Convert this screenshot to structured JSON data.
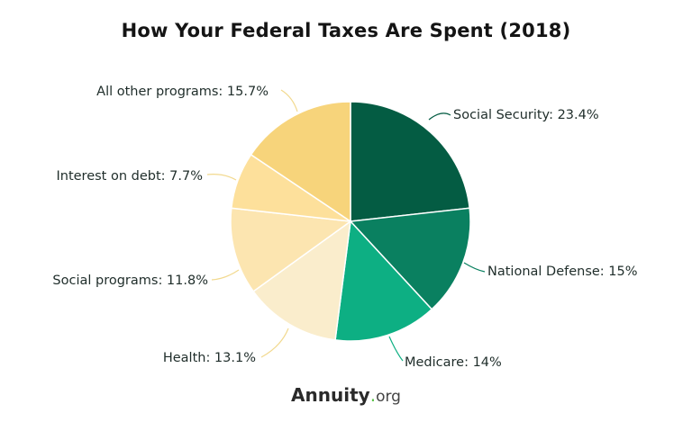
{
  "chart_data": {
    "type": "pie",
    "title": "How Your Federal Taxes Are Spent (2018)",
    "start": "top",
    "direction": "clockwise",
    "slices": [
      {
        "label": "Social Security: 23.4%",
        "value": 23.4,
        "color": "#045c43"
      },
      {
        "label": "National Defense: 15%",
        "value": 15,
        "color": "#0a8060"
      },
      {
        "label": "Medicare: 14%",
        "value": 14,
        "color": "#0daf83"
      },
      {
        "label": "Health: 13.1%",
        "value": 13.1,
        "color": "#faedcc"
      },
      {
        "label": "Social programs: 11.8%",
        "value": 11.8,
        "color": "#fce5b0"
      },
      {
        "label": "Interest on debt: 7.7%",
        "value": 7.7,
        "color": "#fde09b"
      },
      {
        "label": "All other programs: 15.7%",
        "value": 15.7,
        "color": "#f7d47b"
      }
    ]
  },
  "logo": {
    "brand": "Annuity",
    "dot": ".",
    "tld": "org"
  }
}
